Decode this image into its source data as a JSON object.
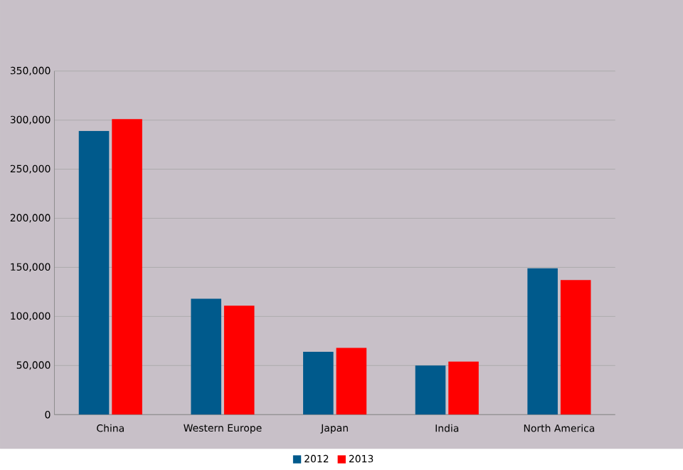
{
  "chart_data": {
    "type": "bar",
    "categories": [
      "China",
      "Western Europe",
      "Japan",
      "India",
      "North America"
    ],
    "series": [
      {
        "name": "2012",
        "color": "#005a8c",
        "values": [
          289000,
          118000,
          64000,
          50000,
          149000
        ]
      },
      {
        "name": "2013",
        "color": "#ff0000",
        "values": [
          301000,
          111000,
          68000,
          54000,
          137000
        ]
      }
    ],
    "ylim": [
      0,
      350000
    ],
    "yticks": [
      {
        "value": 0,
        "label": "0"
      },
      {
        "value": 50000,
        "label": "50,000"
      },
      {
        "value": 100000,
        "label": "100,000"
      },
      {
        "value": 150000,
        "label": "150,000"
      },
      {
        "value": 200000,
        "label": "200,000"
      },
      {
        "value": 250000,
        "label": "250,000"
      },
      {
        "value": 300000,
        "label": "300,000"
      },
      {
        "value": 350000,
        "label": "350,000"
      }
    ],
    "grid": "y",
    "legend": "bottom"
  }
}
